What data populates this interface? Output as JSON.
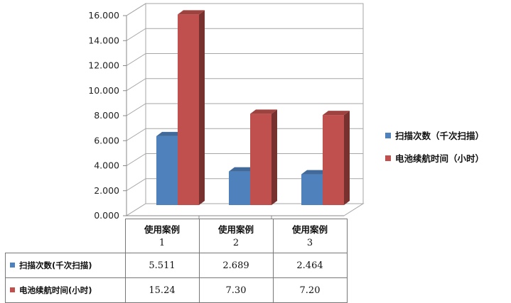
{
  "chart_data": {
    "type": "bar",
    "categories": [
      {
        "line1": "使用案例",
        "line2": "1"
      },
      {
        "line1": "使用案例",
        "line2": "2"
      },
      {
        "line1": "使用案例",
        "line2": "3"
      }
    ],
    "series": [
      {
        "name": "扫描次数（千次扫描）",
        "table_name": "扫描次数(千次扫描)",
        "color": "#4f81bd",
        "values": [
          5.511,
          2.689,
          2.464
        ],
        "table_values": [
          "5.511",
          "2.689",
          "2.464"
        ]
      },
      {
        "name": "电池续航时间（小时）",
        "table_name": "电池续航时间(小时)",
        "color": "#c0504d",
        "values": [
          15.24,
          7.3,
          7.2
        ],
        "table_values": [
          "15.24",
          "7.30",
          "7.20"
        ]
      }
    ],
    "yticks": [
      "0.000",
      "2.000",
      "4.000",
      "6.000",
      "8.000",
      "10.000",
      "12.000",
      "14.000",
      "16.000"
    ],
    "ylim": [
      0,
      16
    ],
    "grid": true,
    "style": "3d",
    "legend_position": "right",
    "has_data_table": true
  }
}
